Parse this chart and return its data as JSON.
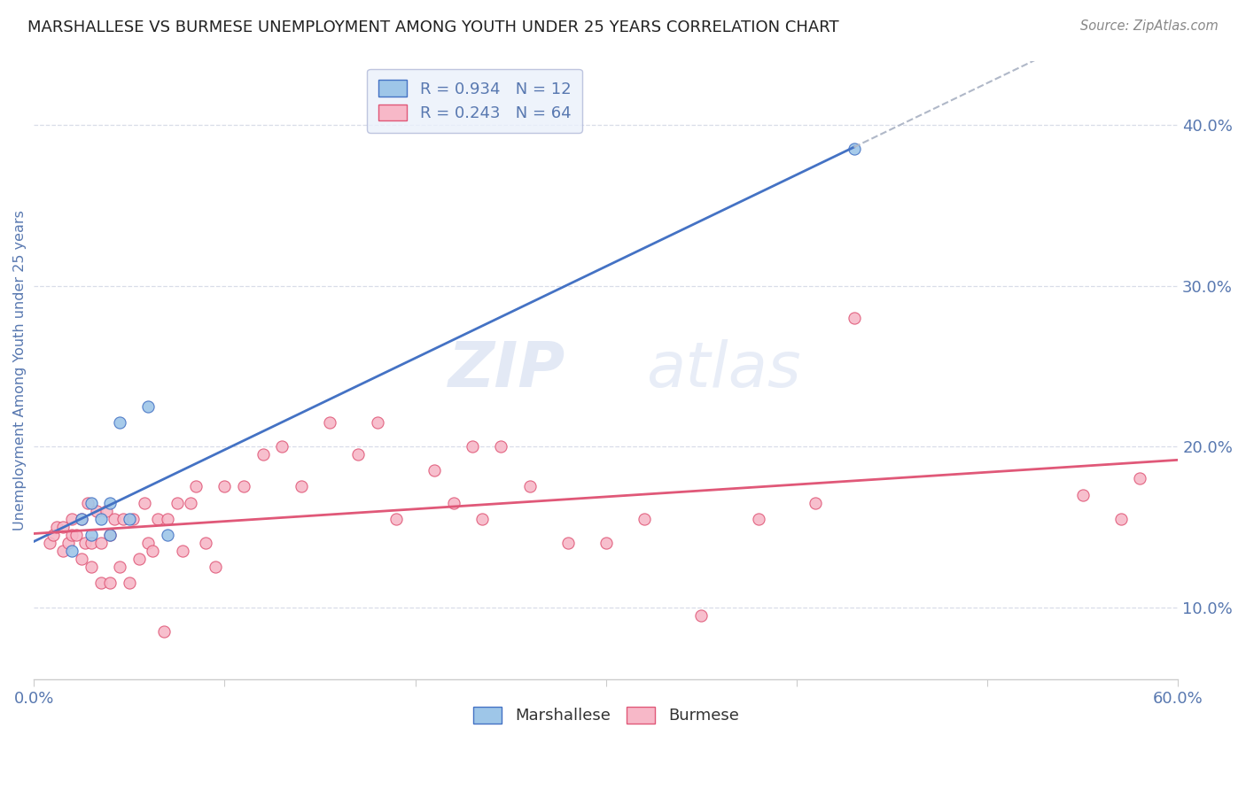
{
  "title": "MARSHALLESE VS BURMESE UNEMPLOYMENT AMONG YOUTH UNDER 25 YEARS CORRELATION CHART",
  "source": "Source: ZipAtlas.com",
  "ylabel": "Unemployment Among Youth under 25 years",
  "xlim": [
    0.0,
    0.6
  ],
  "ylim": [
    0.055,
    0.44
  ],
  "yticks": [
    0.1,
    0.2,
    0.3,
    0.4
  ],
  "ytick_labels": [
    "10.0%",
    "20.0%",
    "30.0%",
    "40.0%"
  ],
  "xticks": [
    0.0,
    0.1,
    0.2,
    0.3,
    0.4,
    0.5,
    0.6
  ],
  "xtick_labels": [
    "0.0%",
    "",
    "",
    "",
    "",
    "",
    "60.0%"
  ],
  "marshallese_color": "#9ec6e8",
  "burmese_color": "#f7b8c8",
  "line_marshallese_color": "#4472c4",
  "line_burmese_color": "#e05878",
  "trend_dash_color": "#b0b8c8",
  "legend_box_color": "#eaf0fb",
  "legend_border_color": "#b0b8d8",
  "r_marshallese": 0.934,
  "n_marshallese": 12,
  "r_burmese": 0.243,
  "n_burmese": 64,
  "watermark_zip": "ZIP",
  "watermark_atlas": "atlas",
  "background_color": "#ffffff",
  "grid_color": "#d8dde8",
  "axis_color": "#5878b0",
  "title_color": "#222222",
  "source_color": "#888888",
  "marshallese_x": [
    0.02,
    0.025,
    0.03,
    0.03,
    0.035,
    0.04,
    0.04,
    0.045,
    0.05,
    0.06,
    0.07,
    0.43
  ],
  "marshallese_y": [
    0.135,
    0.155,
    0.145,
    0.165,
    0.155,
    0.145,
    0.165,
    0.215,
    0.155,
    0.225,
    0.145,
    0.385
  ],
  "burmese_x": [
    0.008,
    0.01,
    0.012,
    0.015,
    0.015,
    0.018,
    0.02,
    0.02,
    0.022,
    0.025,
    0.025,
    0.027,
    0.028,
    0.03,
    0.03,
    0.033,
    0.035,
    0.035,
    0.038,
    0.04,
    0.04,
    0.042,
    0.045,
    0.047,
    0.05,
    0.052,
    0.055,
    0.058,
    0.06,
    0.062,
    0.065,
    0.068,
    0.07,
    0.075,
    0.078,
    0.082,
    0.085,
    0.09,
    0.095,
    0.1,
    0.11,
    0.12,
    0.13,
    0.14,
    0.155,
    0.17,
    0.18,
    0.19,
    0.21,
    0.22,
    0.23,
    0.235,
    0.245,
    0.26,
    0.28,
    0.3,
    0.32,
    0.35,
    0.38,
    0.41,
    0.43,
    0.55,
    0.57,
    0.58
  ],
  "burmese_y": [
    0.14,
    0.145,
    0.15,
    0.135,
    0.15,
    0.14,
    0.145,
    0.155,
    0.145,
    0.13,
    0.155,
    0.14,
    0.165,
    0.125,
    0.14,
    0.16,
    0.115,
    0.14,
    0.16,
    0.115,
    0.145,
    0.155,
    0.125,
    0.155,
    0.115,
    0.155,
    0.13,
    0.165,
    0.14,
    0.135,
    0.155,
    0.085,
    0.155,
    0.165,
    0.135,
    0.165,
    0.175,
    0.14,
    0.125,
    0.175,
    0.175,
    0.195,
    0.2,
    0.175,
    0.215,
    0.195,
    0.215,
    0.155,
    0.185,
    0.165,
    0.2,
    0.155,
    0.2,
    0.175,
    0.14,
    0.14,
    0.155,
    0.095,
    0.155,
    0.165,
    0.28,
    0.17,
    0.155,
    0.18
  ]
}
